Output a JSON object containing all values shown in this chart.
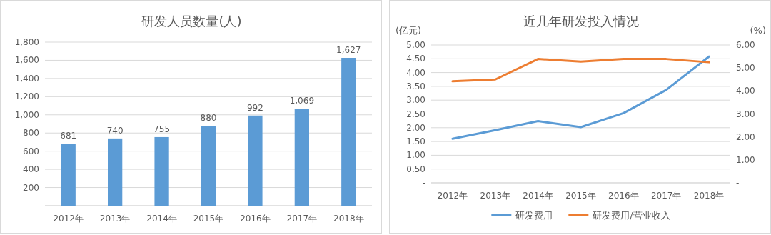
{
  "chart_data": [
    {
      "type": "bar",
      "title": "研发人员数量(人)",
      "categories": [
        "2012年",
        "2013年",
        "2014年",
        "2015年",
        "2016年",
        "2017年",
        "2018年"
      ],
      "values": [
        681,
        740,
        755,
        880,
        992,
        1069,
        1627
      ],
      "color": "#5b9bd5",
      "data_labels": true,
      "value_labels": [
        "681",
        "740",
        "755",
        "880",
        "992",
        "1,069",
        "1,627"
      ],
      "ylim": [
        0,
        1800
      ],
      "yticks": [
        {
          "value": 0,
          "label": "-"
        },
        {
          "value": 200,
          "label": "200"
        },
        {
          "value": 400,
          "label": "400"
        },
        {
          "value": 600,
          "label": "600"
        },
        {
          "value": 800,
          "label": "800"
        },
        {
          "value": 1000,
          "label": "1,000"
        },
        {
          "value": 1200,
          "label": "1,200"
        },
        {
          "value": 1400,
          "label": "1,400"
        },
        {
          "value": 1600,
          "label": "1,600"
        },
        {
          "value": 1800,
          "label": "1,800"
        }
      ],
      "grid": "y",
      "legend": false
    },
    {
      "type": "line",
      "title": "近几年研发投入情况",
      "ylabel": "(亿元)",
      "y2label": "(%)",
      "categories": [
        "2012年",
        "2013年",
        "2014年",
        "2015年",
        "2016年",
        "2017年",
        "2018年"
      ],
      "series": [
        {
          "name": "研发费用",
          "color": "#5b9bd5",
          "values": [
            1.6,
            1.91,
            2.24,
            2.02,
            2.53,
            3.37,
            4.58
          ]
        },
        {
          "name": "研发费用/营业收入",
          "color": "#ed7d31",
          "axis": "y2",
          "values": [
            4.42,
            4.5,
            5.39,
            5.28,
            5.39,
            5.39,
            5.25
          ]
        }
      ],
      "ylim": [
        0,
        5
      ],
      "yticks": [
        {
          "value": 0,
          "label": "-"
        },
        {
          "value": 0.5,
          "label": "0.50"
        },
        {
          "value": 1,
          "label": "1.00"
        },
        {
          "value": 1.5,
          "label": "1.50"
        },
        {
          "value": 2,
          "label": "2.00"
        },
        {
          "value": 2.5,
          "label": "2.50"
        },
        {
          "value": 3,
          "label": "3.00"
        },
        {
          "value": 3.5,
          "label": "3.50"
        },
        {
          "value": 4,
          "label": "4.00"
        },
        {
          "value": 4.5,
          "label": "4.50"
        },
        {
          "value": 5,
          "label": "5.00"
        }
      ],
      "y2lim": [
        0,
        6
      ],
      "y2ticks": [
        {
          "value": 0,
          "label": "-"
        },
        {
          "value": 1,
          "label": "1.00"
        },
        {
          "value": 2,
          "label": "2.00"
        },
        {
          "value": 3,
          "label": "3.00"
        },
        {
          "value": 4,
          "label": "4.00"
        },
        {
          "value": 5,
          "label": "5.00"
        },
        {
          "value": 6,
          "label": "6.00"
        }
      ],
      "grid": "y",
      "legend": "bottom",
      "marker": "none",
      "line_style": "solid"
    }
  ]
}
